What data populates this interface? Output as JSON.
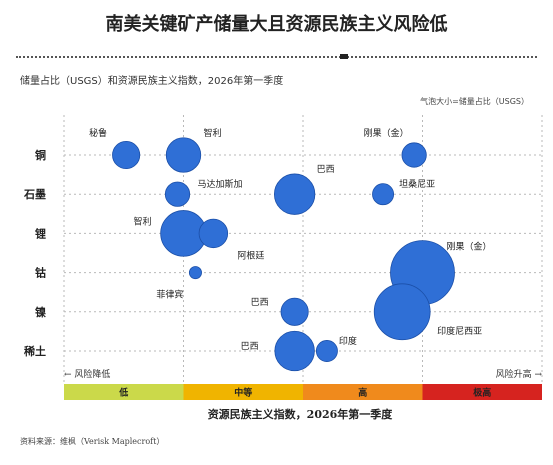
{
  "title": "南美关键矿产储量大且资源民族主义风险低",
  "subtitle": "储量占比（USGS）和资源民族主义指数，2026年第一季度",
  "bubble_note": "气泡大小=储量占比（USGS）",
  "source": "资料来源：维枫（Verisk Maplecroft）",
  "colors": {
    "bubble_fill": "#2f6fd6",
    "bubble_stroke": "#1b4fa8",
    "band_low": "#cbd94a",
    "band_medium": "#f0b400",
    "band_high": "#f08a1c",
    "band_extreme": "#d6231f",
    "grid": "#b9b9b9"
  },
  "chart_data": {
    "type": "scatter",
    "xlabel": "资源民族主义指数，2026年第一季度",
    "x_scale_notes": {
      "left": "← 风险降低",
      "right": "风险升高 →"
    },
    "bands": [
      {
        "label": "低",
        "x_start": 0,
        "x_end": 1
      },
      {
        "label": "中等",
        "x_start": 1,
        "x_end": 2
      },
      {
        "label": "高",
        "x_start": 2,
        "x_end": 3
      },
      {
        "label": "极高",
        "x_start": 3,
        "x_end": 4
      }
    ],
    "xlim": [
      0,
      4
    ],
    "categories": [
      "铜",
      "石墨",
      "锂",
      "钴",
      "镍",
      "稀土"
    ],
    "points": [
      {
        "category": "铜",
        "country": "秘鲁",
        "x": 0.52,
        "size": 10
      },
      {
        "category": "铜",
        "country": "智利",
        "x": 1.0,
        "size": 16
      },
      {
        "category": "铜",
        "country": "刚果（金）",
        "x": 2.93,
        "size": 8
      },
      {
        "category": "石墨",
        "country": "马达加斯加",
        "x": 0.95,
        "size": 8
      },
      {
        "category": "石墨",
        "country": "巴西",
        "x": 1.93,
        "size": 22
      },
      {
        "category": "石墨",
        "country": "坦桑尼亚",
        "x": 2.67,
        "size": 6
      },
      {
        "category": "锂",
        "country": "智利",
        "x": 1.0,
        "size": 28
      },
      {
        "category": "锂",
        "country": "阿根廷",
        "x": 1.25,
        "size": 11
      },
      {
        "category": "钴",
        "country": "菲律宾",
        "x": 1.1,
        "size": 2
      },
      {
        "category": "钴",
        "country": "刚果（金）",
        "x": 3.0,
        "size": 55
      },
      {
        "category": "镍",
        "country": "巴西",
        "x": 1.93,
        "size": 10
      },
      {
        "category": "镍",
        "country": "印度尼西亚",
        "x": 2.83,
        "size": 42
      },
      {
        "category": "稀土",
        "country": "巴西",
        "x": 1.93,
        "size": 21
      },
      {
        "category": "稀土",
        "country": "印度",
        "x": 2.2,
        "size": 6
      }
    ]
  }
}
